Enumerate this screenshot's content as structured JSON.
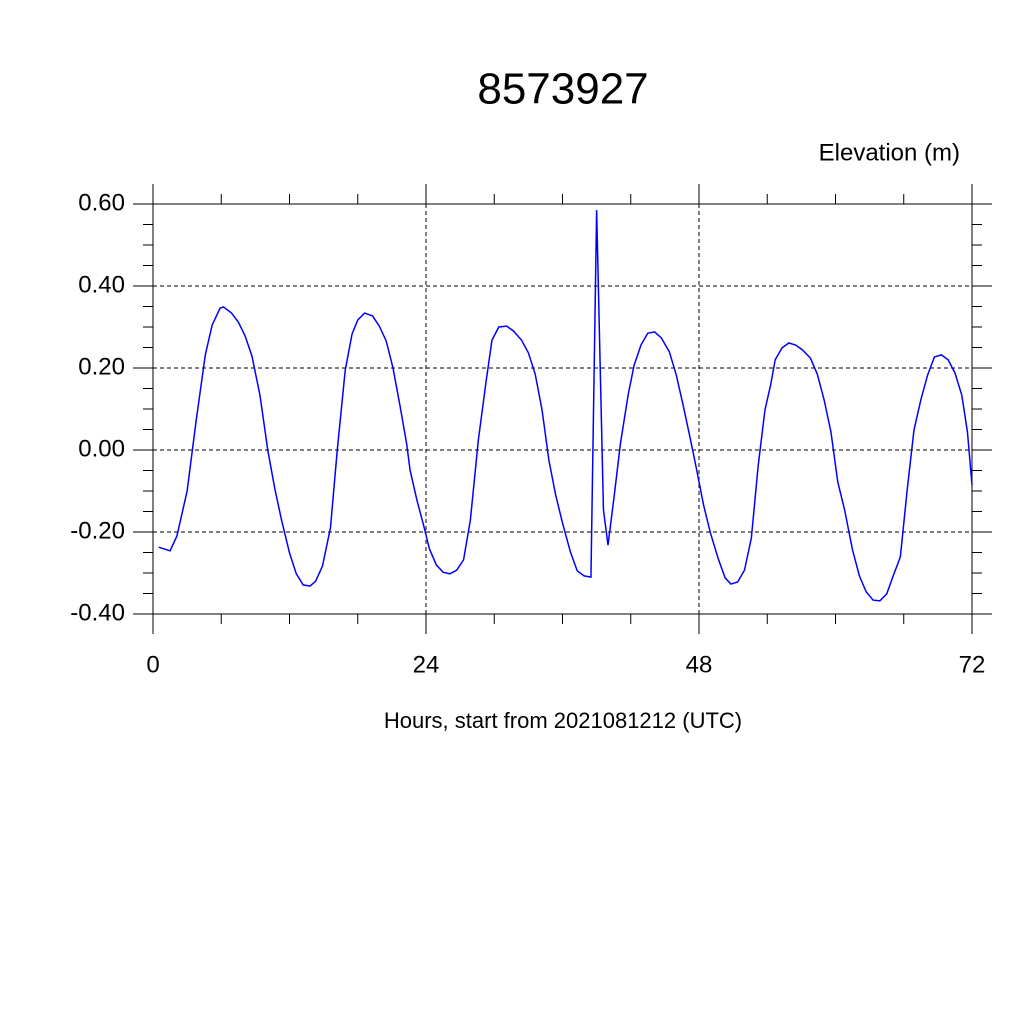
{
  "chart_data": {
    "type": "line",
    "title": "8573927",
    "subtitle": "Elevation (m)",
    "x_label": "Hours, start from 2021081212 (UTC)",
    "xlim": [
      0,
      72
    ],
    "ylim": [
      -0.4,
      0.6
    ],
    "xticks": [
      0,
      24,
      48,
      72
    ],
    "yticks": [
      {
        "value": 0.6,
        "label": "0.60"
      },
      {
        "value": 0.4,
        "label": "0.40"
      },
      {
        "value": 0.2,
        "label": "0.20"
      },
      {
        "value": 0,
        "label": "0.00"
      },
      {
        "value": -0.2,
        "label": "-0.20"
      },
      {
        "value": -0.4,
        "label": "-0.40"
      }
    ],
    "xminorticks": [
      6,
      12,
      18,
      30,
      36,
      42,
      54,
      60,
      66
    ],
    "yminorticks": [
      0.55,
      0.5,
      0.45,
      0.35,
      0.3,
      0.25,
      0.15,
      0.1,
      0.05,
      -0.05,
      -0.1,
      -0.15,
      -0.25,
      -0.3,
      -0.35
    ],
    "grid": true,
    "series": [
      {
        "color": "#0000ff",
        "x": [
          0.5,
          1.5,
          2.1,
          3,
          3.8,
          4.6,
          5.2,
          5.9,
          6.2,
          6.9,
          7.5,
          8.1,
          8.7,
          9.4,
          10.1,
          10.7,
          11.3,
          12,
          12.6,
          13.2,
          13.8,
          14.3,
          14.9,
          15.6,
          16.2,
          16.9,
          17.5,
          18,
          18.6,
          19.3,
          19.9,
          20.5,
          21.1,
          21.7,
          22.3,
          22.6,
          23.2,
          23.8,
          24.3,
          24.9,
          25.5,
          26.1,
          26.7,
          27.3,
          27.9,
          28.6,
          29.3,
          29.8,
          30.4,
          31.1,
          31.7,
          32.4,
          33,
          33.6,
          34.2,
          34.8,
          35.4,
          36,
          36.7,
          37.3,
          37.9,
          38.5,
          39,
          39.6,
          40,
          40.5,
          41.1,
          41.8,
          42.3,
          42.9,
          43.5,
          44.1,
          44.7,
          45.4,
          46,
          46.6,
          47.2,
          47.8,
          48.4,
          49,
          49.7,
          50.3,
          50.8,
          51.4,
          52,
          52.6,
          53.2,
          53.8,
          54.3,
          54.7,
          55.3,
          55.9,
          56.5,
          57.1,
          57.8,
          58.4,
          59,
          59.6,
          60.2,
          60.8,
          61.5,
          62.1,
          62.7,
          63.3,
          63.9,
          64.5,
          65.1,
          65.7,
          66.3,
          66.9,
          67.5,
          68.1,
          68.7,
          69.3,
          69.9,
          70.5,
          71.1,
          71.6,
          72
        ],
        "values": [
          -0.237,
          -0.246,
          -0.21,
          -0.1,
          0.073,
          0.232,
          0.305,
          0.346,
          0.349,
          0.334,
          0.312,
          0.278,
          0.229,
          0.134,
          -0.002,
          -0.093,
          -0.171,
          -0.251,
          -0.302,
          -0.329,
          -0.332,
          -0.32,
          -0.283,
          -0.19,
          0,
          0.195,
          0.283,
          0.317,
          0.334,
          0.327,
          0.302,
          0.266,
          0.2,
          0.11,
          0.015,
          -0.049,
          -0.122,
          -0.185,
          -0.241,
          -0.28,
          -0.298,
          -0.302,
          -0.293,
          -0.268,
          -0.171,
          0.024,
          0.171,
          0.268,
          0.3,
          0.302,
          0.29,
          0.268,
          0.237,
          0.185,
          0.098,
          -0.024,
          -0.11,
          -0.178,
          -0.249,
          -0.295,
          -0.307,
          -0.31,
          0.585,
          -0.146,
          -0.232,
          -0.122,
          0.017,
          0.139,
          0.207,
          0.256,
          0.285,
          0.288,
          0.273,
          0.239,
          0.183,
          0.11,
          0.032,
          -0.049,
          -0.134,
          -0.202,
          -0.266,
          -0.312,
          -0.327,
          -0.322,
          -0.293,
          -0.215,
          -0.039,
          0.098,
          0.159,
          0.22,
          0.249,
          0.261,
          0.256,
          0.244,
          0.224,
          0.185,
          0.122,
          0.044,
          -0.078,
          -0.146,
          -0.244,
          -0.307,
          -0.346,
          -0.366,
          -0.368,
          -0.351,
          -0.305,
          -0.261,
          -0.098,
          0.049,
          0.122,
          0.183,
          0.227,
          0.232,
          0.22,
          0.188,
          0.134,
          0.044,
          -0.085
        ]
      }
    ]
  }
}
